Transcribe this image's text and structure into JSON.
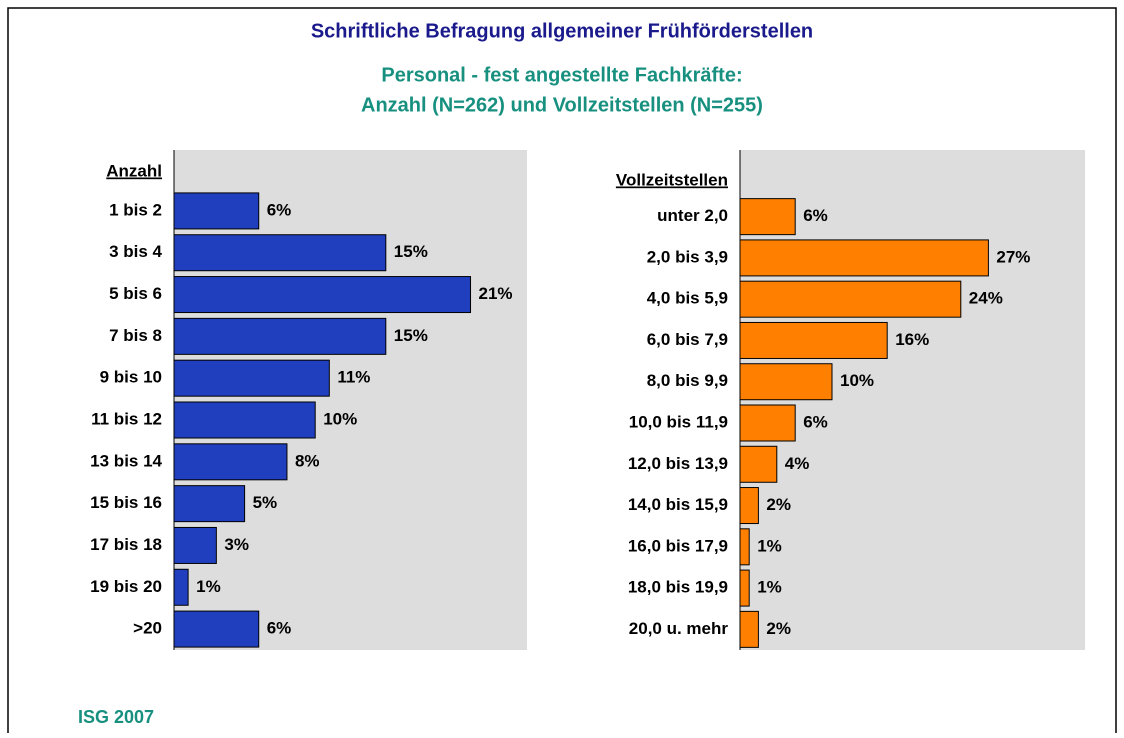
{
  "title": "Schriftliche Befragung allgemeiner Frühförderstellen",
  "subtitle": [
    "Personal - fest angestellte Fachkräfte:",
    "Anzahl (N=262) und Vollzeitstellen (N=255)"
  ],
  "footer": "ISG 2007",
  "chart_data": [
    {
      "type": "bar",
      "orientation": "horizontal",
      "axis_title": "Anzahl",
      "categories": [
        "1 bis 2",
        "3 bis 4",
        "5 bis 6",
        "7 bis 8",
        "9 bis 10",
        "11 bis 12",
        "13 bis 14",
        "15 bis 16",
        "17 bis 18",
        "19 bis 20",
        ">20"
      ],
      "values": [
        6,
        15,
        21,
        15,
        11,
        10,
        8,
        5,
        3,
        1,
        6
      ],
      "value_labels": [
        "6%",
        "15%",
        "21%",
        "15%",
        "11%",
        "10%",
        "8%",
        "5%",
        "3%",
        "1%",
        "6%"
      ],
      "color": "#1f3fbf",
      "xlim": [
        0,
        25
      ]
    },
    {
      "type": "bar",
      "orientation": "horizontal",
      "axis_title": "Vollzeitstellen",
      "categories": [
        "unter 2,0",
        "2,0 bis 3,9",
        "4,0 bis 5,9",
        "6,0 bis 7,9",
        "8,0 bis 9,9",
        "10,0 bis 11,9",
        "12,0 bis 13,9",
        "14,0 bis 15,9",
        "16,0 bis 17,9",
        "18,0 bis 19,9",
        "20,0 u. mehr"
      ],
      "values": [
        6,
        27,
        24,
        16,
        10,
        6,
        4,
        2,
        1,
        1,
        2
      ],
      "value_labels": [
        "6%",
        "27%",
        "24%",
        "16%",
        "10%",
        "6%",
        "4%",
        "2%",
        "1%",
        "1%",
        "2%"
      ],
      "color": "#ff8000",
      "xlim": [
        0,
        37.5
      ]
    }
  ]
}
